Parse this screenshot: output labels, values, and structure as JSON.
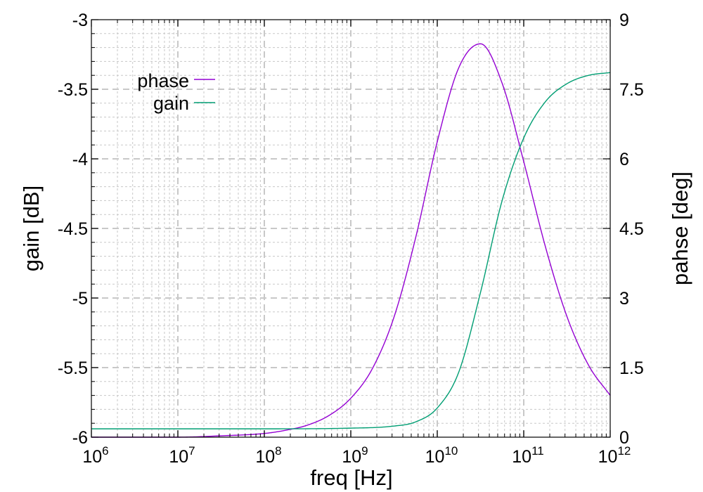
{
  "chart_data": {
    "type": "line",
    "title": "",
    "xlabel": "freq [Hz]",
    "ylabel": "gain [dB]",
    "y2label": "pahse [deg]",
    "x_scale": "log",
    "xlim": [
      1000000,
      1000000000000
    ],
    "x_ticks": [
      {
        "base": "10",
        "exp": "6",
        "value": 1000000
      },
      {
        "base": "10",
        "exp": "7",
        "value": 10000000
      },
      {
        "base": "10",
        "exp": "8",
        "value": 100000000
      },
      {
        "base": "10",
        "exp": "9",
        "value": 1000000000
      },
      {
        "base": "10",
        "exp": "10",
        "value": 10000000000
      },
      {
        "base": "10",
        "exp": "11",
        "value": 100000000000
      },
      {
        "base": "10",
        "exp": "12",
        "value": 1000000000000
      }
    ],
    "ylim": [
      -6,
      -3
    ],
    "y_ticks": [
      "-3",
      "-3.5",
      "-4",
      "-4.5",
      "-5",
      "-5.5",
      "-6"
    ],
    "y2lim": [
      0,
      9
    ],
    "y2_ticks": [
      "9",
      "7.5",
      "6",
      "4.5",
      "3",
      "1.5",
      "0"
    ],
    "grid": true,
    "legend_position": "top-left",
    "series": [
      {
        "name": "phase",
        "axis": "y2",
        "color": "#9400d3",
        "points": [
          [
            1000000,
            0.0
          ],
          [
            3162278,
            0.0
          ],
          [
            10000000,
            0.0
          ],
          [
            31622777,
            0.03
          ],
          [
            100000000,
            0.08
          ],
          [
            177827941,
            0.15
          ],
          [
            316227766,
            0.26
          ],
          [
            562341325,
            0.47
          ],
          [
            1000000000,
            0.84
          ],
          [
            1778279410,
            1.48
          ],
          [
            3162277660,
            2.59
          ],
          [
            5623413252,
            4.3
          ],
          [
            10000000000,
            6.37
          ],
          [
            17782794100,
            7.97
          ],
          [
            31622776602,
            8.48
          ],
          [
            56234132519,
            7.63
          ],
          [
            100000000000,
            5.94
          ],
          [
            177827941004,
            4.11
          ],
          [
            316227766017,
            2.6
          ],
          [
            562341325190,
            1.55
          ],
          [
            1000000000000,
            0.9
          ]
        ]
      },
      {
        "name": "gain",
        "axis": "y",
        "color": "#009e73",
        "points": [
          [
            1000000,
            -5.94
          ],
          [
            100000000,
            -5.94
          ],
          [
            1000000000,
            -5.935
          ],
          [
            3162277660,
            -5.92
          ],
          [
            5623413252,
            -5.89
          ],
          [
            10000000000,
            -5.79
          ],
          [
            17782794100,
            -5.53
          ],
          [
            31622776602,
            -4.96
          ],
          [
            56234132519,
            -4.3
          ],
          [
            100000000000,
            -3.85
          ],
          [
            177827941004,
            -3.59
          ],
          [
            316227766017,
            -3.46
          ],
          [
            562341325190,
            -3.4
          ],
          [
            1000000000000,
            -3.38
          ]
        ]
      }
    ]
  },
  "colors": {
    "phase": "#9400d3",
    "gain": "#009e73",
    "grid": "#c8c8c8"
  }
}
